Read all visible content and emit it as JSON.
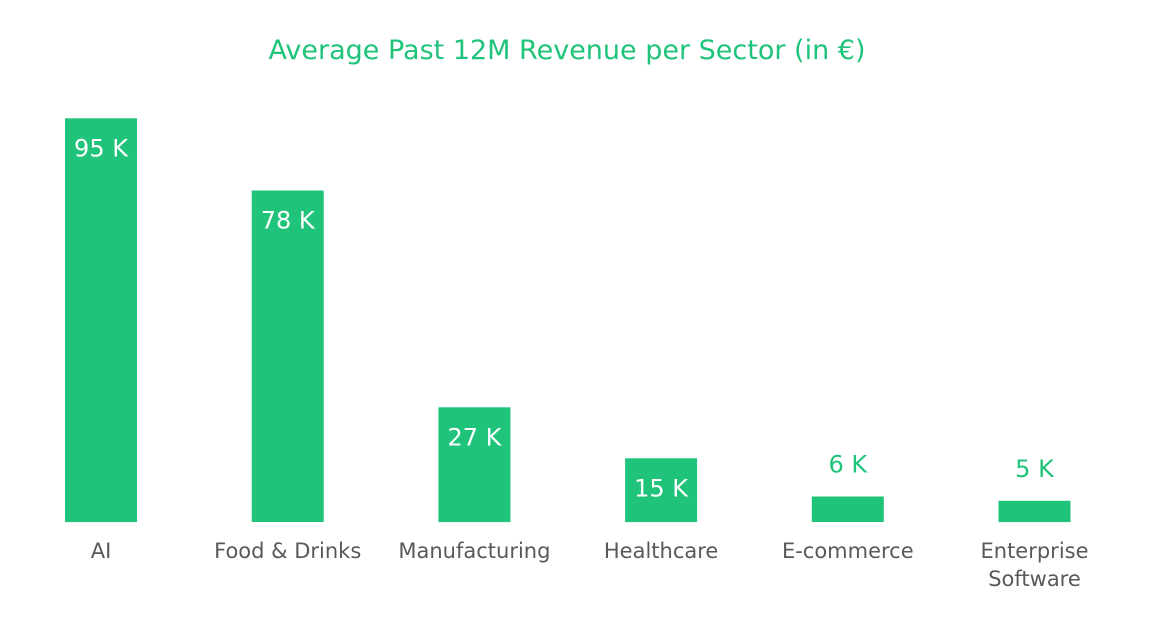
{
  "chart_data": {
    "type": "bar",
    "title": "Average Past 12M Revenue per Sector (in €)",
    "categories": [
      "AI",
      "Food & Drinks",
      "Manufacturing",
      "Healthcare",
      "E-commerce",
      "Enterprise Software"
    ],
    "category_lines": [
      [
        "AI"
      ],
      [
        "Food & Drinks"
      ],
      [
        "Manufacturing"
      ],
      [
        "Healthcare"
      ],
      [
        "E-commerce"
      ],
      [
        "Enterprise",
        "Software"
      ]
    ],
    "values": [
      95,
      78,
      27,
      15,
      6,
      5
    ],
    "data_labels": [
      "95 K",
      "78 K",
      "27 K",
      "15 K",
      "6 K",
      "5 K"
    ],
    "xlabel": "",
    "ylabel": "",
    "ylim": [
      0,
      100
    ],
    "grid": false,
    "legend": "none",
    "colors": {
      "bar": "#1fc47a",
      "title": "#1fc47a",
      "label_inside": "#ffffff",
      "label_outside": "#1fc47a",
      "category_text": "#595959"
    }
  }
}
